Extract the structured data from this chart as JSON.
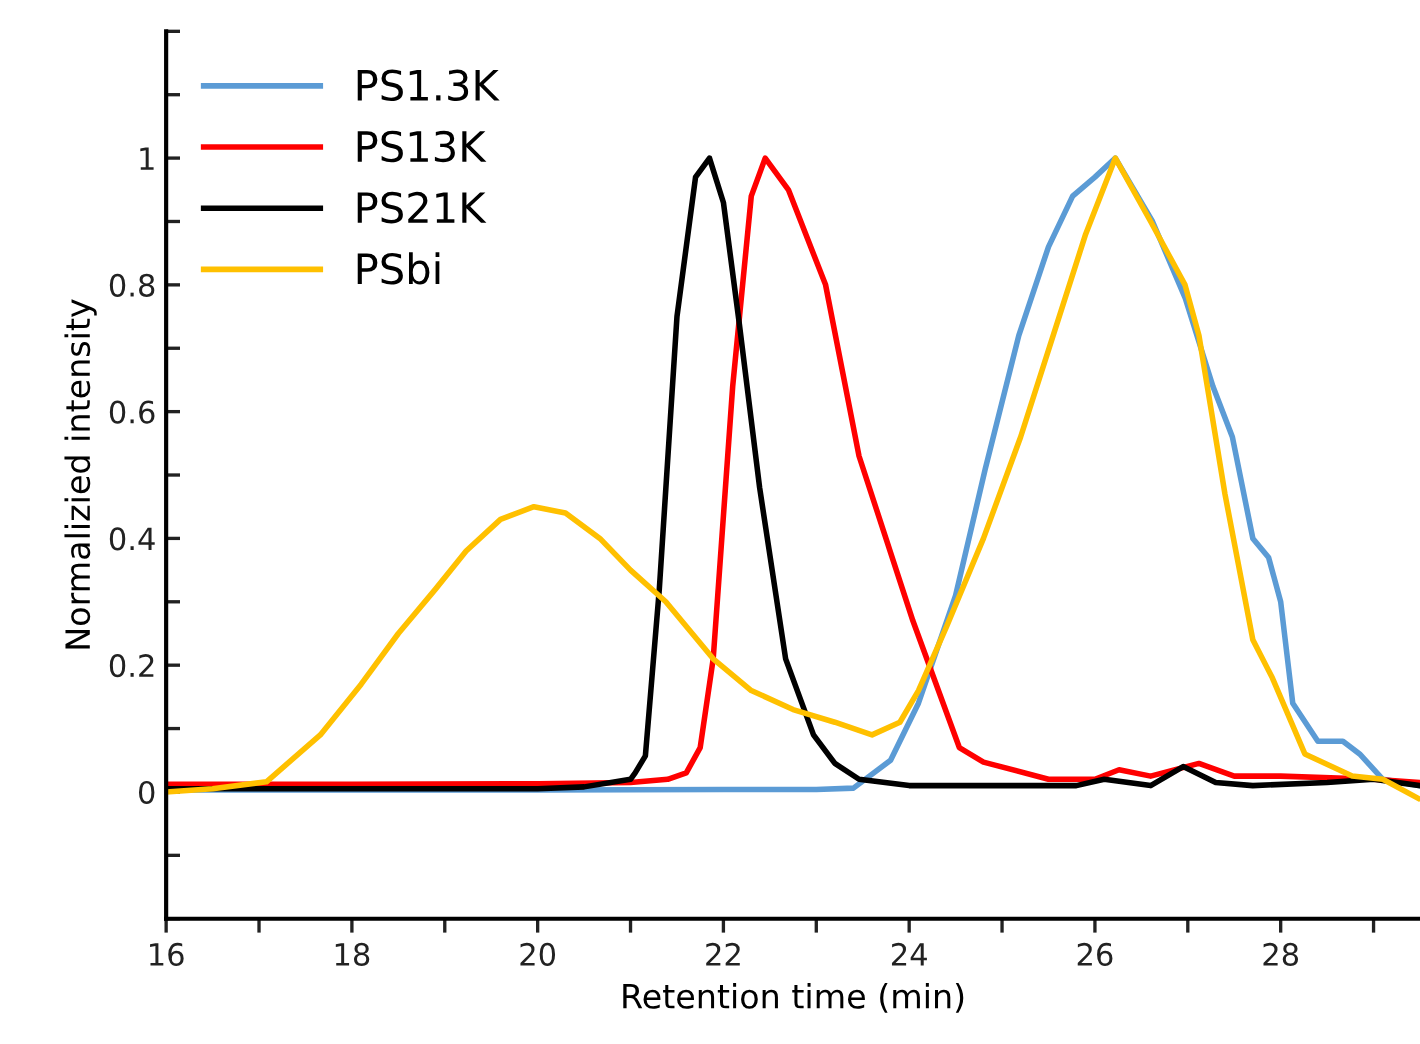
{
  "chart_data": {
    "type": "line",
    "xlabel": "Retention time (min)",
    "ylabel": "Normalizied intensity",
    "legend": "top left",
    "grid": false,
    "marker": "none",
    "line_style": "solid",
    "xlim": [
      16,
      29.5
    ],
    "ylim": [
      -0.2,
      1.2
    ],
    "xticks": [
      16,
      {
        "value": 17,
        "label": null
      },
      18,
      {
        "value": 19,
        "label": null
      },
      20,
      {
        "value": 21,
        "label": null
      },
      22,
      {
        "value": 23,
        "label": null
      },
      24,
      {
        "value": 25,
        "label": null
      },
      26,
      {
        "value": 27,
        "label": null
      },
      28,
      {
        "value": 29,
        "label": null
      }
    ],
    "yticks": [
      {
        "value": -0.2,
        "label": null
      },
      {
        "value": -0.1,
        "label": null
      },
      0,
      {
        "value": 0.1,
        "label": null
      },
      0.2,
      {
        "value": 0.3,
        "label": null
      },
      0.4,
      {
        "value": 0.5,
        "label": null
      },
      0.6,
      {
        "value": 0.7,
        "label": null
      },
      0.8,
      {
        "value": 0.9,
        "label": null
      },
      1,
      {
        "value": 1.1,
        "label": null
      },
      {
        "value": 1.2,
        "label": null
      }
    ],
    "series": [
      {
        "name": "PS1.3K",
        "color": "#5b9bd5",
        "x": [
          16,
          18,
          20,
          22,
          23,
          23.4,
          23.8,
          24.1,
          24.5,
          24.82,
          25.18,
          25.5,
          25.76,
          26.0,
          26.22,
          26.62,
          26.97,
          27.27,
          27.48,
          27.7,
          27.87,
          28.0,
          28.13,
          28.4,
          28.67,
          28.85,
          29.1,
          29.5
        ],
        "values": [
          0.003,
          0.003,
          0.003,
          0.004,
          0.004,
          0.006,
          0.05,
          0.14,
          0.31,
          0.51,
          0.72,
          0.86,
          0.94,
          0.97,
          1,
          0.9,
          0.78,
          0.64,
          0.56,
          0.4,
          0.37,
          0.3,
          0.14,
          0.08,
          0.08,
          0.06,
          0.02,
          0.01
        ]
      },
      {
        "name": "PS13K",
        "color": "#ff0000",
        "x": [
          16,
          18,
          20,
          21,
          21.4,
          21.6,
          21.75,
          21.89,
          22.1,
          22.3,
          22.45,
          22.7,
          23.1,
          23.46,
          24.04,
          24.54,
          24.8,
          25.5,
          26.0,
          26.26,
          26.6,
          27.12,
          27.5,
          28.0,
          29.0,
          29.5
        ],
        "values": [
          0.012,
          0.012,
          0.013,
          0.015,
          0.02,
          0.03,
          0.07,
          0.21,
          0.64,
          0.94,
          1,
          0.95,
          0.8,
          0.53,
          0.27,
          0.07,
          0.047,
          0.02,
          0.02,
          0.035,
          0.025,
          0.045,
          0.025,
          0.025,
          0.02,
          0.015
        ]
      },
      {
        "name": "PS21K",
        "color": "#000000",
        "x": [
          16,
          18,
          20,
          20.5,
          21.0,
          21.05,
          21.16,
          21.31,
          21.5,
          21.7,
          21.85,
          22.0,
          22.17,
          22.39,
          22.67,
          22.97,
          23.2,
          23.46,
          24,
          25,
          25.8,
          26.1,
          26.6,
          26.95,
          27.3,
          27.7,
          28.5,
          29.0,
          29.5
        ],
        "values": [
          0.005,
          0.005,
          0.005,
          0.008,
          0.02,
          0.03,
          0.057,
          0.32,
          0.75,
          0.97,
          1,
          0.93,
          0.74,
          0.48,
          0.21,
          0.09,
          0.045,
          0.02,
          0.01,
          0.01,
          0.01,
          0.02,
          0.01,
          0.04,
          0.015,
          0.01,
          0.015,
          0.02,
          0.01
        ]
      },
      {
        "name": "PSbi",
        "color": "#ffc000",
        "x": [
          16,
          16.5,
          17.08,
          17.66,
          18.1,
          18.5,
          18.9,
          19.23,
          19.6,
          19.96,
          20.3,
          20.67,
          21.0,
          21.38,
          21.89,
          22.3,
          22.75,
          23.2,
          23.6,
          23.9,
          24.1,
          24.4,
          24.8,
          25.2,
          25.55,
          25.9,
          26.22,
          26.6,
          26.97,
          27.12,
          27.4,
          27.7,
          27.91,
          28.26,
          28.77,
          29.1,
          29.48
        ],
        "values": [
          0.0,
          0.005,
          0.016,
          0.09,
          0.17,
          0.25,
          0.32,
          0.38,
          0.43,
          0.45,
          0.44,
          0.4,
          0.35,
          0.3,
          0.21,
          0.16,
          0.13,
          0.11,
          0.09,
          0.11,
          0.16,
          0.26,
          0.4,
          0.56,
          0.72,
          0.88,
          1,
          0.9,
          0.8,
          0.72,
          0.47,
          0.24,
          0.18,
          0.06,
          0.025,
          0.02,
          -0.01
        ]
      }
    ]
  }
}
